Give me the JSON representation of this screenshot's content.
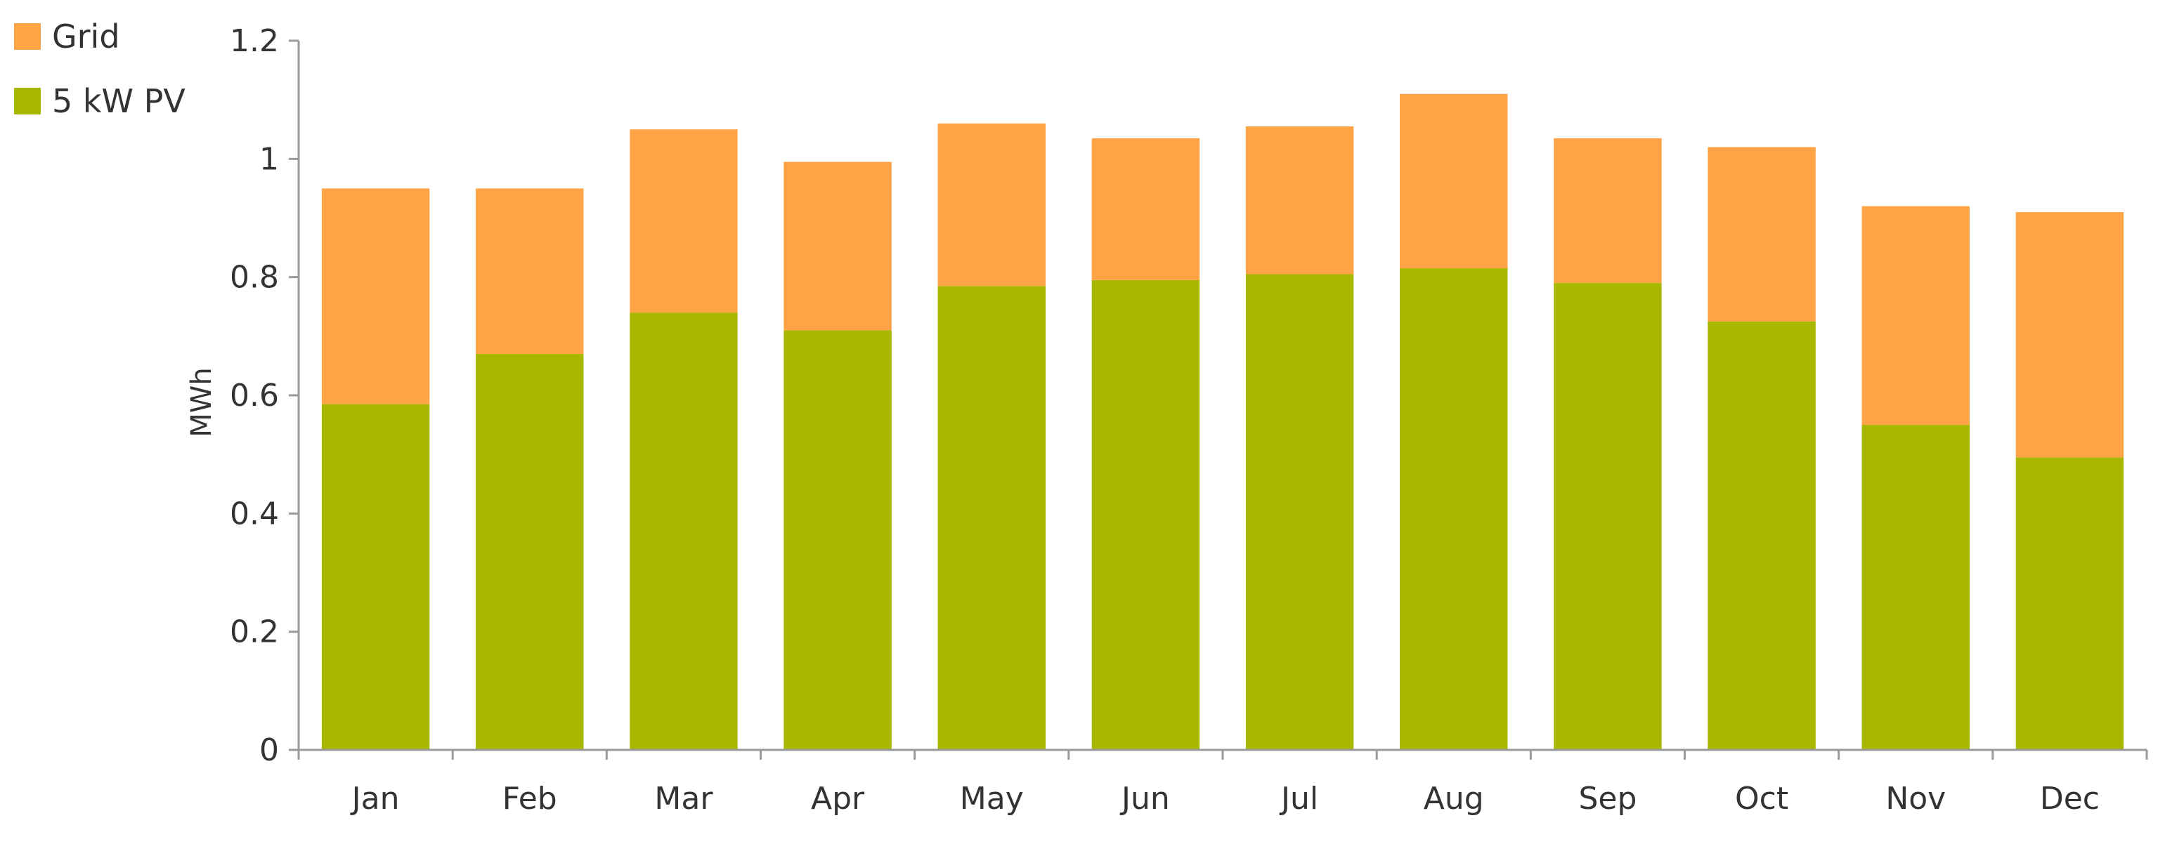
{
  "chart_data": {
    "type": "bar",
    "stacked": true,
    "title": "",
    "xlabel": "",
    "ylabel": "MWh",
    "ylim": [
      0,
      1.2
    ],
    "yticks": [
      "0",
      "0.2",
      "0.4",
      "0.6",
      "0.8",
      "1",
      "1.2"
    ],
    "grid": false,
    "legend_position": "top-left",
    "categories": [
      "Jan",
      "Feb",
      "Mar",
      "Apr",
      "May",
      "Jun",
      "Jul",
      "Aug",
      "Sep",
      "Oct",
      "Nov",
      "Dec"
    ],
    "series": [
      {
        "name": "5 kW PV",
        "color": "#a8b800",
        "values": [
          0.585,
          0.67,
          0.74,
          0.71,
          0.785,
          0.795,
          0.805,
          0.815,
          0.79,
          0.725,
          0.55,
          0.495
        ]
      },
      {
        "name": "Grid",
        "color": "#ffa446",
        "values": [
          0.365,
          0.28,
          0.31,
          0.285,
          0.275,
          0.24,
          0.25,
          0.295,
          0.245,
          0.295,
          0.37,
          0.415
        ]
      }
    ]
  }
}
